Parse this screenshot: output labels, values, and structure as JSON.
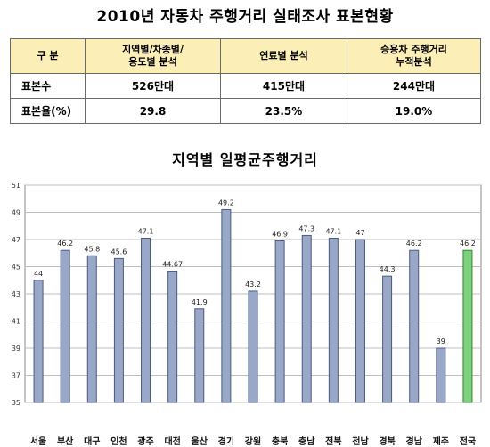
{
  "page": {
    "title": "2010년 자동차 주행거리 실태조사 표본현황"
  },
  "table": {
    "headers": [
      "구 분",
      "지역별/차종별/",
      "용도별 분석",
      "연료별 분석",
      "승용차 주행거리",
      "누적분석"
    ],
    "rows": [
      [
        "표본수",
        "526만대",
        "415만대",
        "244만대"
      ],
      [
        "표본율(%)",
        "29.8",
        "23.5%",
        "19.0%"
      ]
    ]
  },
  "chart_data": {
    "type": "bar",
    "title": "지역별 일평균주행거리",
    "categories": [
      "서울",
      "부산",
      "대구",
      "인천",
      "광주",
      "대전",
      "울산",
      "경기",
      "강원",
      "충북",
      "충남",
      "전북",
      "전남",
      "경북",
      "경남",
      "제주",
      "전국"
    ],
    "values": [
      44,
      46.2,
      45.8,
      45.6,
      47.1,
      44.67,
      41.9,
      49.2,
      43.2,
      46.9,
      47.3,
      47.1,
      47,
      44.3,
      46.2,
      39,
      46.2
    ],
    "value_labels": [
      "44",
      "46.2",
      "45.8",
      "45.6",
      "47.1",
      "44.67",
      "41.9",
      "49.2",
      "43.2",
      "46.9",
      "47.3",
      "47.1",
      "47",
      "44.3",
      "46.2",
      "39",
      "46.2"
    ],
    "highlight_category": "전국",
    "ylim": [
      35,
      51
    ],
    "yticks": [
      "35",
      "37",
      "39",
      "41",
      "43",
      "45",
      "47",
      "49",
      "51"
    ],
    "grid": true,
    "colors": {
      "bar": "#9aa8c7",
      "bar_edge": "#4a5a82",
      "highlight": "#7fcf7f",
      "highlight_edge": "#2f8a2f",
      "grid": "#bfbfbf"
    }
  }
}
